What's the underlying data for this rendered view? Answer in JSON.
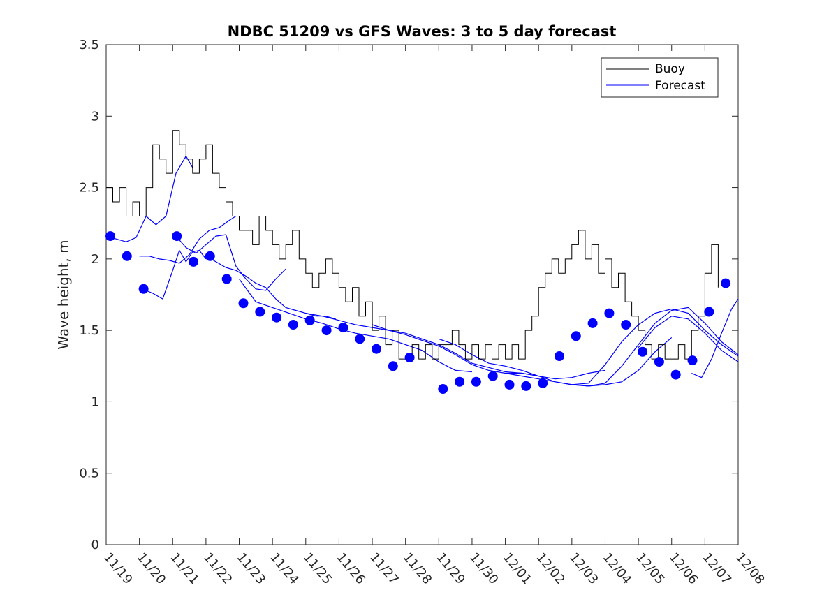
{
  "chart_data": {
    "type": "line",
    "title": "NDBC 51209 vs GFS Waves: 3 to 5 day forecast",
    "xlabel": "",
    "ylabel": "Wave height, m",
    "ylim": [
      0,
      3.5
    ],
    "xlim": [
      0,
      19
    ],
    "y_ticks": [
      0,
      0.5,
      1,
      1.5,
      2,
      2.5,
      3,
      3.5
    ],
    "y_tick_labels": [
      "0",
      "0.5",
      "1",
      "1.5",
      "2",
      "2.5",
      "3",
      "3.5"
    ],
    "x_tick_labels": [
      "11/19",
      "11/20",
      "11/21",
      "11/22",
      "11/23",
      "11/24",
      "11/25",
      "11/26",
      "11/27",
      "11/28",
      "11/29",
      "11/30",
      "12/01",
      "12/02",
      "12/03",
      "12/04",
      "12/05",
      "12/06",
      "12/07",
      "12/08"
    ],
    "legend": [
      "Buoy",
      "Forecast"
    ],
    "legend_position": "top-right",
    "colors": {
      "buoy": "#000000",
      "forecast": "#0000ff",
      "axes": "#262626"
    },
    "buoy": {
      "x": [
        0,
        0.2,
        0.4,
        0.6,
        0.8,
        1.0,
        1.2,
        1.4,
        1.6,
        1.8,
        2.0,
        2.2,
        2.4,
        2.6,
        2.8,
        3.0,
        3.2,
        3.4,
        3.6,
        3.8,
        4.0,
        4.2,
        4.4,
        4.6,
        4.8,
        5.0,
        5.2,
        5.4,
        5.6,
        5.8,
        6.0,
        6.2,
        6.4,
        6.6,
        6.8,
        7.0,
        7.2,
        7.4,
        7.6,
        7.8,
        8.0,
        8.2,
        8.4,
        8.6,
        8.8,
        9.0,
        9.2,
        9.4,
        9.6,
        9.8,
        10.0,
        10.2,
        10.4,
        10.6,
        10.8,
        11.0,
        11.2,
        11.4,
        11.6,
        11.8,
        12.0,
        12.2,
        12.4,
        12.6,
        12.8,
        13.0,
        13.2,
        13.4,
        13.6,
        13.8,
        14.0,
        14.2,
        14.4,
        14.6,
        14.8,
        15.0,
        15.2,
        15.4,
        15.6,
        15.8,
        16.0,
        16.2,
        16.4,
        16.6,
        16.8,
        17.0,
        17.2,
        17.4,
        17.6,
        17.8,
        18.0,
        18.2,
        18.4
      ],
      "y": [
        2.5,
        2.4,
        2.5,
        2.3,
        2.4,
        2.3,
        2.5,
        2.8,
        2.7,
        2.6,
        2.9,
        2.8,
        2.7,
        2.6,
        2.7,
        2.8,
        2.6,
        2.5,
        2.4,
        2.3,
        2.2,
        2.2,
        2.1,
        2.3,
        2.2,
        2.1,
        2.0,
        2.1,
        2.2,
        2.0,
        1.9,
        1.8,
        1.9,
        2.0,
        1.9,
        1.8,
        1.7,
        1.8,
        1.6,
        1.7,
        1.5,
        1.6,
        1.4,
        1.5,
        1.3,
        1.3,
        1.4,
        1.3,
        1.4,
        1.3,
        1.4,
        1.4,
        1.5,
        1.4,
        1.3,
        1.4,
        1.3,
        1.4,
        1.3,
        1.4,
        1.3,
        1.4,
        1.3,
        1.5,
        1.6,
        1.8,
        1.9,
        2.0,
        1.9,
        2.0,
        2.1,
        2.2,
        2.0,
        2.1,
        1.9,
        2.0,
        1.8,
        1.9,
        1.7,
        1.6,
        1.5,
        1.4,
        1.3,
        1.4,
        1.3,
        1.3,
        1.4,
        1.3,
        1.5,
        1.6,
        1.9,
        2.1,
        1.8
      ]
    },
    "forecast_markers": {
      "x": [
        0.125,
        0.625,
        1.125,
        2.125,
        2.625,
        3.125,
        3.625,
        4.125,
        4.625,
        5.125,
        5.625,
        6.125,
        6.625,
        7.125,
        7.625,
        8.125,
        8.625,
        9.125,
        10.125,
        10.625,
        11.125,
        11.625,
        12.125,
        12.625,
        13.125,
        13.625,
        14.125,
        14.625,
        15.125,
        15.625,
        16.125,
        16.625,
        17.125,
        17.625,
        18.125,
        18.625
      ],
      "y": [
        2.16,
        2.02,
        1.79,
        2.16,
        1.98,
        2.02,
        1.86,
        1.69,
        1.63,
        1.59,
        1.54,
        1.57,
        1.5,
        1.52,
        1.44,
        1.37,
        1.25,
        1.31,
        1.09,
        1.14,
        1.14,
        1.18,
        1.12,
        1.11,
        1.13,
        1.32,
        1.46,
        1.55,
        1.62,
        1.54,
        1.35,
        1.28,
        1.19,
        1.29,
        1.63,
        1.83
      ]
    },
    "forecast_lines": [
      {
        "x": [
          0,
          0.3,
          0.6,
          0.9,
          1.2,
          1.5,
          1.8,
          2.1,
          2.4,
          2.6
        ],
        "y": [
          2.16,
          2.14,
          2.12,
          2.15,
          2.3,
          2.24,
          2.3,
          2.6,
          2.72,
          2.64
        ]
      },
      {
        "x": [
          1.0,
          1.3,
          1.6,
          1.9,
          2.2,
          2.5,
          2.8,
          3.1,
          3.4,
          3.7,
          3.9
        ],
        "y": [
          2.02,
          2.02,
          2.0,
          1.99,
          1.97,
          2.03,
          2.14,
          2.2,
          2.22,
          2.27,
          2.3
        ]
      },
      {
        "x": [
          1.1,
          1.4,
          1.7,
          2.0,
          2.2,
          2.4,
          2.6,
          2.8,
          3.0
        ],
        "y": [
          1.79,
          1.76,
          1.72,
          1.92,
          2.06,
          1.98,
          2.05,
          2.06,
          2.0
        ]
      },
      {
        "x": [
          2.1,
          2.4,
          2.7,
          3.0,
          3.3,
          3.6,
          3.9,
          4.2,
          4.5,
          4.8,
          5.1,
          5.4
        ],
        "y": [
          2.16,
          2.08,
          2.04,
          2.1,
          2.16,
          2.17,
          1.95,
          1.86,
          1.79,
          1.78,
          1.86,
          1.93
        ]
      },
      {
        "x": [
          3.0,
          3.3,
          3.6,
          3.9,
          4.2,
          4.5,
          4.8,
          5.1,
          5.4,
          5.7,
          6.0,
          6.3,
          6.6,
          6.9
        ],
        "y": [
          2.02,
          1.98,
          1.94,
          1.92,
          1.88,
          1.83,
          1.8,
          1.72,
          1.66,
          1.64,
          1.62,
          1.6,
          1.6,
          1.58
        ]
      },
      {
        "x": [
          4.0,
          4.5,
          5.0,
          5.5,
          6.0,
          6.5,
          7.0,
          7.5,
          8.0,
          8.5,
          9.0,
          9.5,
          10.0,
          10.5,
          11.0
        ],
        "y": [
          1.86,
          1.7,
          1.66,
          1.62,
          1.58,
          1.55,
          1.51,
          1.48,
          1.46,
          1.44,
          1.4,
          1.36,
          1.28,
          1.22,
          1.21
        ]
      },
      {
        "x": [
          6.0,
          6.5,
          7.0,
          7.5,
          8.0,
          8.5,
          9.0,
          9.5,
          10.0,
          10.5,
          11.0,
          11.5,
          12.0,
          12.5,
          13.0
        ],
        "y": [
          1.62,
          1.6,
          1.57,
          1.54,
          1.52,
          1.5,
          1.48,
          1.44,
          1.4,
          1.34,
          1.27,
          1.24,
          1.21,
          1.2,
          1.18
        ]
      },
      {
        "x": [
          8.0,
          8.5,
          9.0,
          9.5,
          10.0,
          10.5,
          11.0,
          11.5,
          12.0,
          12.5,
          13.0,
          13.5,
          14.0,
          14.5,
          15.0
        ],
        "y": [
          1.54,
          1.5,
          1.47,
          1.43,
          1.39,
          1.33,
          1.26,
          1.22,
          1.2,
          1.2,
          1.18,
          1.16,
          1.17,
          1.2,
          1.22
        ]
      },
      {
        "x": [
          10.0,
          10.5,
          11.0,
          11.5,
          12.0,
          12.5,
          13.0,
          13.5,
          14.0,
          14.5,
          15.0,
          15.5,
          16.0,
          16.5,
          17.0
        ],
        "y": [
          1.44,
          1.4,
          1.33,
          1.27,
          1.25,
          1.22,
          1.18,
          1.14,
          1.12,
          1.11,
          1.12,
          1.14,
          1.22,
          1.35,
          1.45
        ]
      },
      {
        "x": [
          12.0,
          12.5,
          13.0,
          13.5,
          14.0,
          14.5,
          15.0,
          15.5,
          16.0,
          16.5,
          17.0,
          17.5,
          18.0,
          18.5,
          19.0
        ],
        "y": [
          1.2,
          1.18,
          1.16,
          1.14,
          1.12,
          1.11,
          1.13,
          1.25,
          1.4,
          1.55,
          1.64,
          1.66,
          1.55,
          1.42,
          1.33
        ]
      },
      {
        "x": [
          14.0,
          14.5,
          15.0,
          15.5,
          16.0,
          16.5,
          17.0,
          17.5,
          18.0,
          18.5,
          19.0
        ],
        "y": [
          1.12,
          1.13,
          1.26,
          1.42,
          1.54,
          1.62,
          1.65,
          1.62,
          1.5,
          1.4,
          1.32
        ]
      },
      {
        "x": [
          16.0,
          16.5,
          17.0,
          17.5,
          18.0,
          18.5,
          19.0
        ],
        "y": [
          1.38,
          1.52,
          1.6,
          1.58,
          1.48,
          1.36,
          1.28
        ]
      },
      {
        "x": [
          17.6,
          17.9,
          18.2,
          18.5,
          18.8,
          19.0
        ],
        "y": [
          1.2,
          1.17,
          1.3,
          1.48,
          1.65,
          1.72
        ]
      }
    ]
  }
}
